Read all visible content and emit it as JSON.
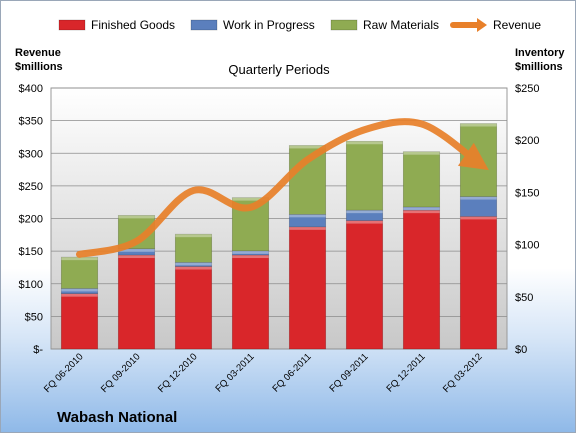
{
  "chart_data": {
    "type": "bar",
    "stacked": true,
    "subtitle": "Quarterly Periods",
    "footer": "Wabash National",
    "categories": [
      "FQ 06-2010",
      "FQ 09-2010",
      "FQ 12-2010",
      "FQ 03-2011",
      "FQ 06-2011",
      "FQ 09-2011",
      "FQ 12-2011",
      "FQ 03-2012"
    ],
    "left_axis": {
      "label_line1": "Revenue",
      "label_line2": "$millions",
      "ylim": [
        0,
        400
      ],
      "ticks": [
        "$-",
        "$50",
        "$100",
        "$150",
        "$200",
        "$250",
        "$300",
        "$350",
        "$400"
      ],
      "tick_values": [
        0,
        50,
        100,
        150,
        200,
        250,
        300,
        350,
        400
      ]
    },
    "right_axis": {
      "label_line1": "Inventory",
      "label_line2": "$millions",
      "ylim": [
        0,
        250
      ],
      "ticks": [
        "$0",
        "$50",
        "$100",
        "$150",
        "$200",
        "$250"
      ],
      "tick_values": [
        0,
        50,
        100,
        150,
        200,
        250
      ]
    },
    "series": [
      {
        "name": "Finished Goods",
        "axis": "right",
        "color": "#d9262a",
        "values": [
          53,
          90,
          79,
          90,
          117,
          123,
          133,
          127
        ]
      },
      {
        "name": "Work in Progress",
        "axis": "right",
        "color": "#5b7fbd",
        "values": [
          5,
          6,
          4,
          4,
          12,
          10,
          3,
          19
        ]
      },
      {
        "name": "Raw Materials",
        "axis": "right",
        "color": "#8fab52",
        "values": [
          30,
          32,
          27,
          51,
          66,
          66,
          53,
          70
        ]
      },
      {
        "name": "Revenue",
        "axis": "left",
        "type": "line",
        "color": "#e8802a",
        "values": [
          145,
          165,
          243,
          217,
          290,
          336,
          345,
          285
        ]
      }
    ],
    "grid": true,
    "legend": "top"
  }
}
